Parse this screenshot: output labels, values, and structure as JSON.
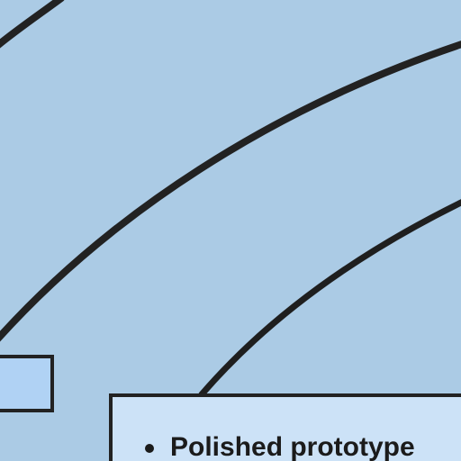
{
  "card": {
    "bullets": [
      "Polished prototype"
    ]
  },
  "colors": {
    "background": "#abcbe5",
    "card_fill": "#cce2f7",
    "left_box_fill": "#b0d2f4",
    "stroke": "#222222"
  }
}
